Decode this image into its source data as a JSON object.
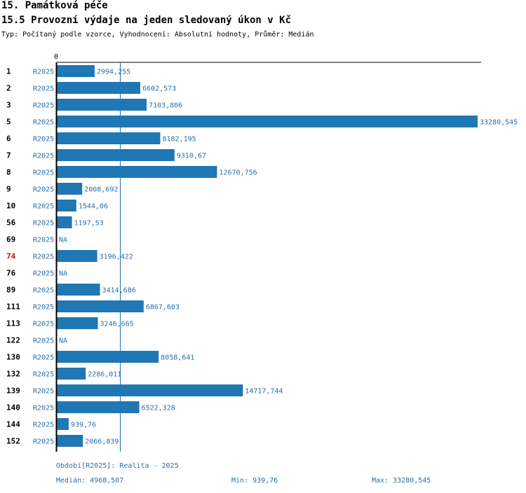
{
  "header": {
    "title": "15. Památková péče",
    "subtitle": "15.5 Provozní výdaje na jeden sledovaný úkon v Kč",
    "description": "Typ: Počítaný podle vzorce, Vyhodnocení: Absolutní hodnoty, Průměr: Medián"
  },
  "chart_data": {
    "type": "bar",
    "orientation": "horizontal",
    "zero_label": "0",
    "xlim": [
      0,
      33280.545
    ],
    "median": 4968.507,
    "highlight_color": "#cc1111",
    "bar_color": "#1f77b4",
    "rows": [
      {
        "label": "1",
        "period": "R2025",
        "value": 2994.255,
        "value_label": "2994,255",
        "highlight": false
      },
      {
        "label": "2",
        "period": "R2025",
        "value": 6602.573,
        "value_label": "6602,573",
        "highlight": false
      },
      {
        "label": "3",
        "period": "R2025",
        "value": 7103.806,
        "value_label": "7103,806",
        "highlight": false
      },
      {
        "label": "5",
        "period": "R2025",
        "value": 33280.545,
        "value_label": "33280,545",
        "highlight": false
      },
      {
        "label": "6",
        "period": "R2025",
        "value": 8182.195,
        "value_label": "8182,195",
        "highlight": false
      },
      {
        "label": "7",
        "period": "R2025",
        "value": 9310.67,
        "value_label": "9310,67",
        "highlight": false
      },
      {
        "label": "8",
        "period": "R2025",
        "value": 12670.756,
        "value_label": "12670,756",
        "highlight": false
      },
      {
        "label": "9",
        "period": "R2025",
        "value": 2008.692,
        "value_label": "2008,692",
        "highlight": false
      },
      {
        "label": "10",
        "period": "R2025",
        "value": 1544.06,
        "value_label": "1544,06",
        "highlight": false
      },
      {
        "label": "56",
        "period": "R2025",
        "value": 1197.53,
        "value_label": "1197,53",
        "highlight": false
      },
      {
        "label": "69",
        "period": "R2025",
        "value": null,
        "value_label": "NA",
        "highlight": false
      },
      {
        "label": "74",
        "period": "R2025",
        "value": 3196.422,
        "value_label": "3196,422",
        "highlight": true
      },
      {
        "label": "76",
        "period": "R2025",
        "value": null,
        "value_label": "NA",
        "highlight": false
      },
      {
        "label": "89",
        "period": "R2025",
        "value": 3414.686,
        "value_label": "3414,686",
        "highlight": false
      },
      {
        "label": "111",
        "period": "R2025",
        "value": 6867.603,
        "value_label": "6867,603",
        "highlight": false
      },
      {
        "label": "113",
        "period": "R2025",
        "value": 3246.665,
        "value_label": "3246,665",
        "highlight": false
      },
      {
        "label": "122",
        "period": "R2025",
        "value": null,
        "value_label": "NA",
        "highlight": false
      },
      {
        "label": "130",
        "period": "R2025",
        "value": 8058.641,
        "value_label": "8058,641",
        "highlight": false
      },
      {
        "label": "132",
        "period": "R2025",
        "value": 2286.011,
        "value_label": "2286,011",
        "highlight": false
      },
      {
        "label": "139",
        "period": "R2025",
        "value": 14717.744,
        "value_label": "14717,744",
        "highlight": false
      },
      {
        "label": "140",
        "period": "R2025",
        "value": 6522.328,
        "value_label": "6522,328",
        "highlight": false
      },
      {
        "label": "144",
        "period": "R2025",
        "value": 939.76,
        "value_label": "939,76",
        "highlight": false
      },
      {
        "label": "152",
        "period": "R2025",
        "value": 2066.839,
        "value_label": "2066,839",
        "highlight": false
      }
    ]
  },
  "footer": {
    "period_note": "Období[R2025]: Realita - 2025",
    "median_text": "Medián: 4968,507",
    "min_text": "Min: 939,76",
    "max_text": "Max: 33280,545"
  }
}
